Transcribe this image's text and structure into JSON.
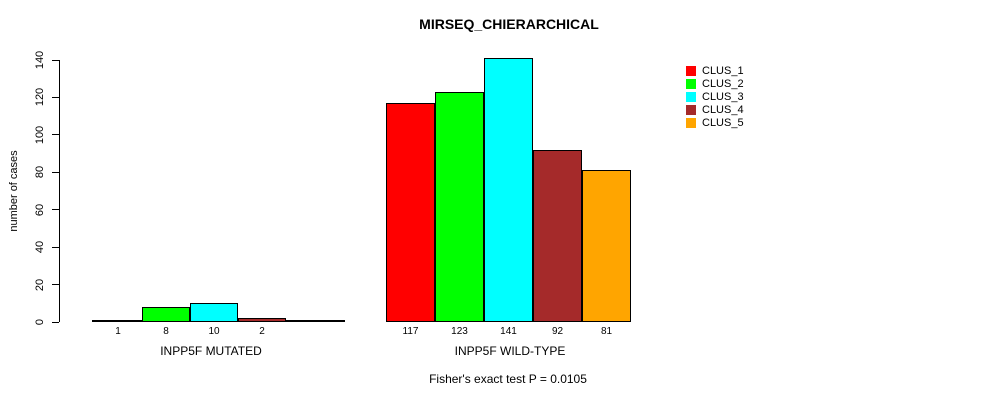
{
  "page": {
    "background": "#FFFFFF"
  },
  "chart_data": {
    "type": "bar",
    "title": "MIRSEQ_CHIERARCHICAL",
    "ylabel": "number of cases",
    "ylim": [
      0,
      140
    ],
    "yticks": [
      0,
      20,
      40,
      60,
      80,
      100,
      120,
      140
    ],
    "grid": false,
    "annotation": "Fisher's exact test P = 0.0105",
    "legend": {
      "position": "right",
      "entries": [
        {
          "label": "CLUS_1",
          "color": "#FF0000"
        },
        {
          "label": "CLUS_2",
          "color": "#00FF00"
        },
        {
          "label": "CLUS_3",
          "color": "#00FFFF"
        },
        {
          "label": "CLUS_4",
          "color": "#A52A2A"
        },
        {
          "label": "CLUS_5",
          "color": "#FFA500"
        }
      ]
    },
    "categories": [
      "INPP5F MUTATED",
      "INPP5F WILD-TYPE"
    ],
    "groups": [
      {
        "label": "INPP5F MUTATED",
        "bars": [
          {
            "cluster": "CLUS_1",
            "value": 1,
            "color": "#FF0000"
          },
          {
            "cluster": "CLUS_2",
            "value": 8,
            "color": "#00FF00"
          },
          {
            "cluster": "CLUS_3",
            "value": 10,
            "color": "#00FFFF"
          },
          {
            "cluster": "CLUS_4",
            "value": 2,
            "color": "#A52A2A"
          }
        ]
      },
      {
        "label": "INPP5F WILD-TYPE",
        "bars": [
          {
            "cluster": "CLUS_1",
            "value": 117,
            "color": "#FF0000"
          },
          {
            "cluster": "CLUS_2",
            "value": 123,
            "color": "#00FF00"
          },
          {
            "cluster": "CLUS_3",
            "value": 141,
            "color": "#00FFFF"
          },
          {
            "cluster": "CLUS_4",
            "value": 92,
            "color": "#A52A2A"
          },
          {
            "cluster": "CLUS_5",
            "value": 81,
            "color": "#FFA500"
          }
        ]
      }
    ]
  }
}
